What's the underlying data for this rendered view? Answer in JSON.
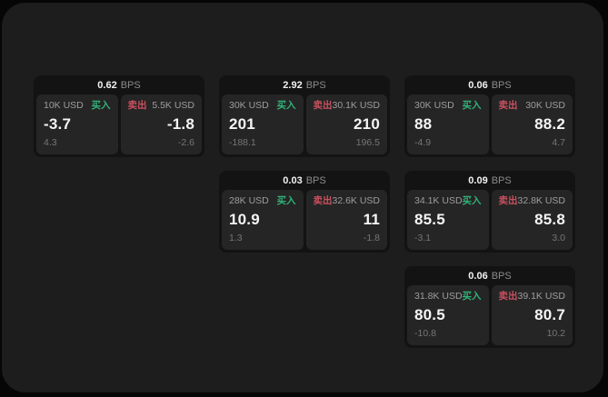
{
  "labels": {
    "buy": "买入",
    "sell": "卖出",
    "bps": "BPS"
  },
  "colors": {
    "page_bg": "#060606",
    "panel_bg": "#1d1d1d",
    "card_bg": "#131313",
    "subcard_bg": "#252525",
    "buy_green": "#31b178",
    "sell_red": "#c9505f",
    "value_white": "#f5f5f5",
    "label_gray": "#9d9d9d",
    "muted_gray": "#767676"
  },
  "cards": [
    {
      "bps": "0.62",
      "buy": {
        "amount": "10K USD",
        "value": "-3.7",
        "sub": "4.3"
      },
      "sell": {
        "amount": "5.5K USD",
        "value": "-1.8",
        "sub": "-2.6"
      }
    },
    {
      "bps": "2.92",
      "buy": {
        "amount": "30K USD",
        "value": "201",
        "sub": "-188.1"
      },
      "sell": {
        "amount": "30.1K USD",
        "value": "210",
        "sub": "196.5"
      }
    },
    {
      "bps": "0.03",
      "buy": {
        "amount": "28K USD",
        "value": "10.9",
        "sub": "1.3"
      },
      "sell": {
        "amount": "32.6K USD",
        "value": "11",
        "sub": "-1.8"
      }
    },
    {
      "bps": "0.06",
      "buy": {
        "amount": "30K USD",
        "value": "88",
        "sub": "-4.9"
      },
      "sell": {
        "amount": "30K USD",
        "value": "88.2",
        "sub": "4.7"
      }
    },
    {
      "bps": "0.09",
      "buy": {
        "amount": "34.1K USD",
        "value": "85.5",
        "sub": "-3.1"
      },
      "sell": {
        "amount": "32.8K USD",
        "value": "85.8",
        "sub": "3.0"
      }
    },
    {
      "bps": "0.06",
      "buy": {
        "amount": "31.8K USD",
        "value": "80.5",
        "sub": "-10.8"
      },
      "sell": {
        "amount": "39.1K USD",
        "value": "80.7",
        "sub": "10.2"
      }
    }
  ]
}
